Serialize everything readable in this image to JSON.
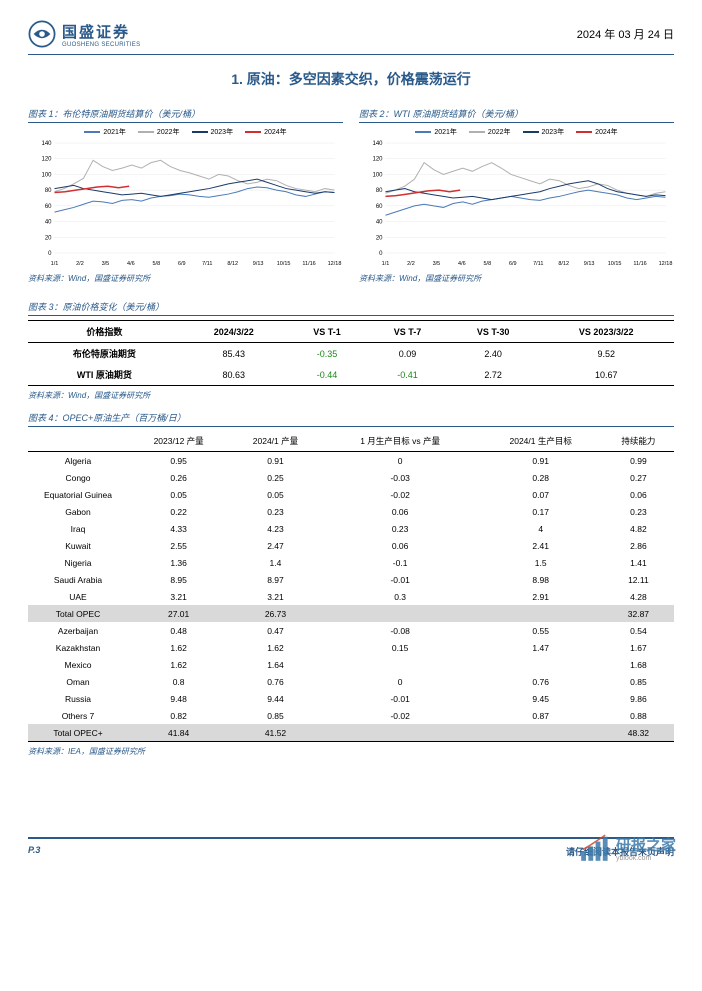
{
  "header": {
    "logo_cn": "国盛证券",
    "logo_en": "GUOSHENG SECURITIES",
    "date": "2024 年 03 月 24 日"
  },
  "section_title": "1. 原油：多空因素交织，价格震荡运行",
  "chart1": {
    "title": "图表 1：布伦特原油期货结算价（美元/桶）",
    "type": "line",
    "legend": [
      "2021年",
      "2022年",
      "2023年",
      "2024年"
    ],
    "legend_colors": [
      "#4a7ab8",
      "#b0b0b0",
      "#1a3a6a",
      "#d03030"
    ],
    "xticks": [
      "1/1",
      "2/2",
      "3/5",
      "4/6",
      "5/8",
      "6/9",
      "7/11",
      "8/12",
      "9/13",
      "10/15",
      "11/16",
      "12/18"
    ],
    "ylim": [
      0,
      140
    ],
    "ytick_step": 20,
    "grid_color": "#e8e8e8",
    "series": {
      "2021": [
        52,
        55,
        58,
        62,
        66,
        65,
        63,
        67,
        68,
        66,
        70,
        72,
        73,
        75,
        74,
        72,
        71,
        73,
        75,
        78,
        82,
        84,
        83,
        80,
        78,
        74,
        72,
        75,
        78,
        77
      ],
      "2022": [
        78,
        82,
        88,
        95,
        118,
        110,
        105,
        108,
        112,
        108,
        115,
        118,
        110,
        105,
        102,
        98,
        94,
        100,
        98,
        92,
        88,
        90,
        94,
        92,
        86,
        82,
        80,
        78,
        82,
        80
      ],
      "2023": [
        82,
        84,
        86,
        82,
        80,
        78,
        76,
        74,
        75,
        76,
        74,
        72,
        74,
        76,
        78,
        80,
        82,
        85,
        88,
        90,
        92,
        94,
        90,
        86,
        82,
        80,
        78,
        76,
        78,
        77
      ],
      "2024": [
        77,
        78,
        80,
        82,
        84,
        85,
        83,
        85
      ]
    },
    "source": "资料来源：Wind，国盛证券研究所"
  },
  "chart2": {
    "title": "图表 2：WTI 原油期货结算价（美元/桶）",
    "type": "line",
    "legend": [
      "2021年",
      "2022年",
      "2023年",
      "2024年"
    ],
    "legend_colors": [
      "#4a7ab8",
      "#b0b0b0",
      "#1a3a6a",
      "#d03030"
    ],
    "xticks": [
      "1/1",
      "2/2",
      "3/5",
      "4/6",
      "5/8",
      "6/9",
      "7/11",
      "8/12",
      "9/13",
      "10/15",
      "11/16",
      "12/18"
    ],
    "ylim": [
      0,
      140
    ],
    "ytick_step": 20,
    "grid_color": "#e8e8e8",
    "series": {
      "2021": [
        48,
        52,
        56,
        60,
        62,
        60,
        58,
        63,
        65,
        62,
        66,
        68,
        70,
        72,
        70,
        68,
        67,
        70,
        72,
        75,
        78,
        80,
        78,
        76,
        74,
        70,
        68,
        70,
        72,
        71
      ],
      "2022": [
        76,
        80,
        85,
        94,
        115,
        106,
        100,
        104,
        108,
        104,
        110,
        115,
        108,
        100,
        96,
        92,
        88,
        94,
        92,
        86,
        82,
        84,
        88,
        86,
        80,
        76,
        74,
        72,
        76,
        78
      ],
      "2023": [
        78,
        80,
        82,
        78,
        76,
        74,
        72,
        70,
        71,
        72,
        70,
        68,
        70,
        72,
        74,
        76,
        78,
        82,
        85,
        88,
        90,
        92,
        88,
        82,
        78,
        76,
        74,
        72,
        74,
        73
      ],
      "2024": [
        72,
        73,
        75,
        77,
        79,
        80,
        78,
        80
      ]
    },
    "source": "资料来源：Wind，国盛证券研究所"
  },
  "table3": {
    "title": "图表 3：原油价格变化（美元/桶）",
    "columns": [
      "价格指数",
      "2024/3/22",
      "VS T-1",
      "VS T-7",
      "VS T-30",
      "VS 2023/3/22"
    ],
    "rows": [
      [
        "布伦特原油期货",
        "85.43",
        "-0.35",
        "0.09",
        "2.40",
        "9.52"
      ],
      [
        "WTI 原油期货",
        "80.63",
        "-0.44",
        "-0.41",
        "2.72",
        "10.67"
      ]
    ],
    "source": "资料来源：Wind，国盛证券研究所"
  },
  "table4": {
    "title": "图表 4：OPEC+原油生产（百万桶/日）",
    "columns": [
      "",
      "2023/12 产量",
      "2024/1 产量",
      "1 月生产目标 vs 产量",
      "2024/1 生产目标",
      "持续能力"
    ],
    "rows": [
      {
        "cells": [
          "Algeria",
          "0.95",
          "0.91",
          "0",
          "0.91",
          "0.99"
        ],
        "total": false
      },
      {
        "cells": [
          "Congo",
          "0.26",
          "0.25",
          "-0.03",
          "0.28",
          "0.27"
        ],
        "total": false
      },
      {
        "cells": [
          "Equatorial Guinea",
          "0.05",
          "0.05",
          "-0.02",
          "0.07",
          "0.06"
        ],
        "total": false
      },
      {
        "cells": [
          "Gabon",
          "0.22",
          "0.23",
          "0.06",
          "0.17",
          "0.23"
        ],
        "total": false
      },
      {
        "cells": [
          "Iraq",
          "4.33",
          "4.23",
          "0.23",
          "4",
          "4.82"
        ],
        "total": false
      },
      {
        "cells": [
          "Kuwait",
          "2.55",
          "2.47",
          "0.06",
          "2.41",
          "2.86"
        ],
        "total": false
      },
      {
        "cells": [
          "Nigeria",
          "1.36",
          "1.4",
          "-0.1",
          "1.5",
          "1.41"
        ],
        "total": false
      },
      {
        "cells": [
          "Saudi Arabia",
          "8.95",
          "8.97",
          "-0.01",
          "8.98",
          "12.11"
        ],
        "total": false
      },
      {
        "cells": [
          "UAE",
          "3.21",
          "3.21",
          "0.3",
          "2.91",
          "4.28"
        ],
        "total": false
      },
      {
        "cells": [
          "Total OPEC",
          "27.01",
          "26.73",
          "",
          "",
          "32.87"
        ],
        "total": true
      },
      {
        "cells": [
          "Azerbaijan",
          "0.48",
          "0.47",
          "-0.08",
          "0.55",
          "0.54"
        ],
        "total": false
      },
      {
        "cells": [
          "Kazakhstan",
          "1.62",
          "1.62",
          "0.15",
          "1.47",
          "1.67"
        ],
        "total": false
      },
      {
        "cells": [
          "Mexico",
          "1.62",
          "1.64",
          "",
          "",
          "1.68"
        ],
        "total": false
      },
      {
        "cells": [
          "Oman",
          "0.8",
          "0.76",
          "0",
          "0.76",
          "0.85"
        ],
        "total": false
      },
      {
        "cells": [
          "Russia",
          "9.48",
          "9.44",
          "-0.01",
          "9.45",
          "9.86"
        ],
        "total": false
      },
      {
        "cells": [
          "Others 7",
          "0.82",
          "0.85",
          "-0.02",
          "0.87",
          "0.88"
        ],
        "total": false
      },
      {
        "cells": [
          "Total OPEC+",
          "41.84",
          "41.52",
          "",
          "",
          "48.32"
        ],
        "total": true
      }
    ],
    "source": "资料来源：IEA，国盛证券研究所"
  },
  "footer": {
    "page": "P.3",
    "disclaimer": "请仔细阅读本报告末页声明",
    "watermark_cn": "研报之家",
    "watermark_en": "yblook.com"
  }
}
